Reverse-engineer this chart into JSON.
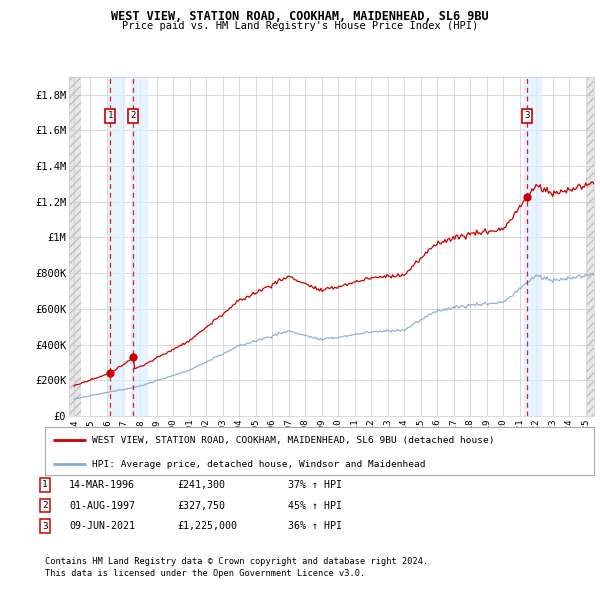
{
  "title1": "WEST VIEW, STATION ROAD, COOKHAM, MAIDENHEAD, SL6 9BU",
  "title2": "Price paid vs. HM Land Registry's House Price Index (HPI)",
  "xlim_left": 1993.7,
  "xlim_right": 2025.5,
  "ylim_bottom": 0,
  "ylim_top": 1900000,
  "yticks": [
    0,
    200000,
    400000,
    600000,
    800000,
    1000000,
    1200000,
    1400000,
    1600000,
    1800000
  ],
  "ytick_labels": [
    "£0",
    "£200K",
    "£400K",
    "£600K",
    "£800K",
    "£1M",
    "£1.2M",
    "£1.4M",
    "£1.6M",
    "£1.8M"
  ],
  "xticks": [
    1994,
    1995,
    1996,
    1997,
    1998,
    1999,
    2000,
    2001,
    2002,
    2003,
    2004,
    2005,
    2006,
    2007,
    2008,
    2009,
    2010,
    2011,
    2012,
    2013,
    2014,
    2015,
    2016,
    2017,
    2018,
    2019,
    2020,
    2021,
    2022,
    2023,
    2024,
    2025
  ],
  "sale_dates": [
    1996.2,
    1997.58,
    2021.44
  ],
  "sale_prices": [
    241300,
    327750,
    1225000
  ],
  "sale_labels": [
    "1",
    "2",
    "3"
  ],
  "sale_info": [
    {
      "num": "1",
      "date": "14-MAR-1996",
      "price": "£241,300",
      "change": "37% ↑ HPI"
    },
    {
      "num": "2",
      "date": "01-AUG-1997",
      "price": "£327,750",
      "change": "45% ↑ HPI"
    },
    {
      "num": "3",
      "date": "09-JUN-2021",
      "price": "£1,225,000",
      "change": "36% ↑ HPI"
    }
  ],
  "legend_line1": "WEST VIEW, STATION ROAD, COOKHAM, MAIDENHEAD, SL6 9BU (detached house)",
  "legend_line2": "HPI: Average price, detached house, Windsor and Maidenhead",
  "footnote1": "Contains HM Land Registry data © Crown copyright and database right 2024.",
  "footnote2": "This data is licensed under the Open Government Licence v3.0.",
  "price_line_color": "#cc0000",
  "hpi_line_color": "#88aacc",
  "dashed_vline_color": "#cc0000",
  "shade_color": "#ddeeff",
  "grid_color": "#cccccc",
  "bg_color": "#ffffff",
  "hatch_bg_color": "#e8e8e8",
  "label_box_ec": "#cc0000"
}
